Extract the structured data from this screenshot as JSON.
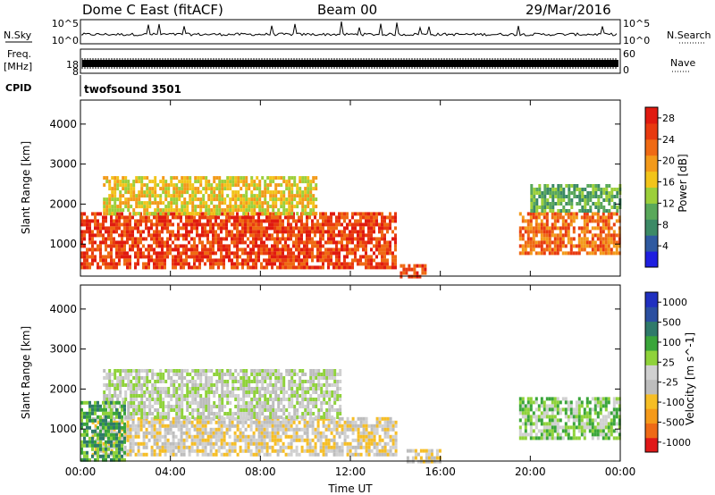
{
  "header": {
    "station": "Dome C East (fitACF)",
    "beam": "Beam 00",
    "date": "29/Mar/2016"
  },
  "panels": {
    "nsky": {
      "label": "N.Sky",
      "left_ticks": [
        "10^5",
        "10^0"
      ],
      "right_ticks": [
        "10^5",
        "10^0"
      ],
      "right_label": "N.Search"
    },
    "freq": {
      "label_line1": "Freq.",
      "label_line2": "[MHz]",
      "left_ticks": [
        "18",
        "8"
      ],
      "right_ticks": [
        "60",
        "0"
      ],
      "right_label": "Nave"
    },
    "cpid": {
      "label": "CPID",
      "text": "twofsound 3501"
    }
  },
  "colors": {
    "power": [
      "#1f1fe0",
      "#2f5aa0",
      "#3c8a66",
      "#59a85a",
      "#9ccf3a",
      "#f2c41a",
      "#f39a1a",
      "#ef6a14",
      "#e83a10",
      "#e01a10"
    ],
    "velocity": [
      "#e01818",
      "#ee6a16",
      "#f59a1a",
      "#f6be26",
      "#bdbdbd",
      "#d0d0d0",
      "#8fd23a",
      "#3aa53a",
      "#2f7a6a",
      "#2b4fa0",
      "#2030c0"
    ]
  },
  "chart_data": [
    {
      "type": "heatmap",
      "name": "power",
      "ylabel": "Slant Range [km]",
      "xlabel": "",
      "x_ticks": [],
      "y_ticks": [
        "1000",
        "2000",
        "3000",
        "4000"
      ],
      "ylim": [
        200,
        4600
      ],
      "xlim_hours": [
        0,
        24
      ],
      "colorbar": {
        "label": "Power [dB]",
        "ticks": [
          "4",
          "8",
          "12",
          "16",
          "20",
          "24",
          "28"
        ],
        "range": [
          0,
          30
        ]
      },
      "echo_regions": [
        {
          "t0": 0.0,
          "t1": 14.0,
          "r0": 400,
          "r1": 1800,
          "value": 26
        },
        {
          "t0": 1.0,
          "t1": 10.5,
          "r0": 1800,
          "r1": 2700,
          "value": 17
        },
        {
          "t0": 14.2,
          "t1": 15.3,
          "r0": 200,
          "r1": 500,
          "value": 28
        },
        {
          "t0": 19.5,
          "t1": 24.0,
          "r0": 800,
          "r1": 1800,
          "value": 22
        },
        {
          "t0": 20.0,
          "t1": 24.0,
          "r0": 1800,
          "r1": 2500,
          "value": 10
        }
      ]
    },
    {
      "type": "heatmap",
      "name": "velocity",
      "ylabel": "Slant Range [km]",
      "xlabel": "Time UT",
      "x_ticks": [
        "00:00",
        "04:00",
        "08:00",
        "12:00",
        "16:00",
        "20:00",
        "00:00"
      ],
      "y_ticks": [
        "1000",
        "2000",
        "3000",
        "4000"
      ],
      "ylim": [
        200,
        4600
      ],
      "xlim_hours": [
        0,
        24
      ],
      "colorbar": {
        "label": "Velocity [m s^-1]",
        "ticks": [
          "1000",
          "500",
          "100",
          "25",
          "-25",
          "-100",
          "-500",
          "-1000"
        ],
        "range": [
          -1000,
          1000
        ]
      },
      "echo_regions": [
        {
          "t0": 0.5,
          "t1": 14.0,
          "r0": 400,
          "r1": 1300,
          "value": -150
        },
        {
          "t0": 1.0,
          "t1": 11.5,
          "r0": 1300,
          "r1": 2500,
          "value": 0
        },
        {
          "t0": 0.0,
          "t1": 2.0,
          "r0": 200,
          "r1": 1700,
          "value": 300
        },
        {
          "t0": 14.5,
          "t1": 16.0,
          "r0": 200,
          "r1": 500,
          "value": -200
        },
        {
          "t0": 19.5,
          "t1": 24.0,
          "r0": 800,
          "r1": 1800,
          "value": 200
        }
      ]
    }
  ]
}
